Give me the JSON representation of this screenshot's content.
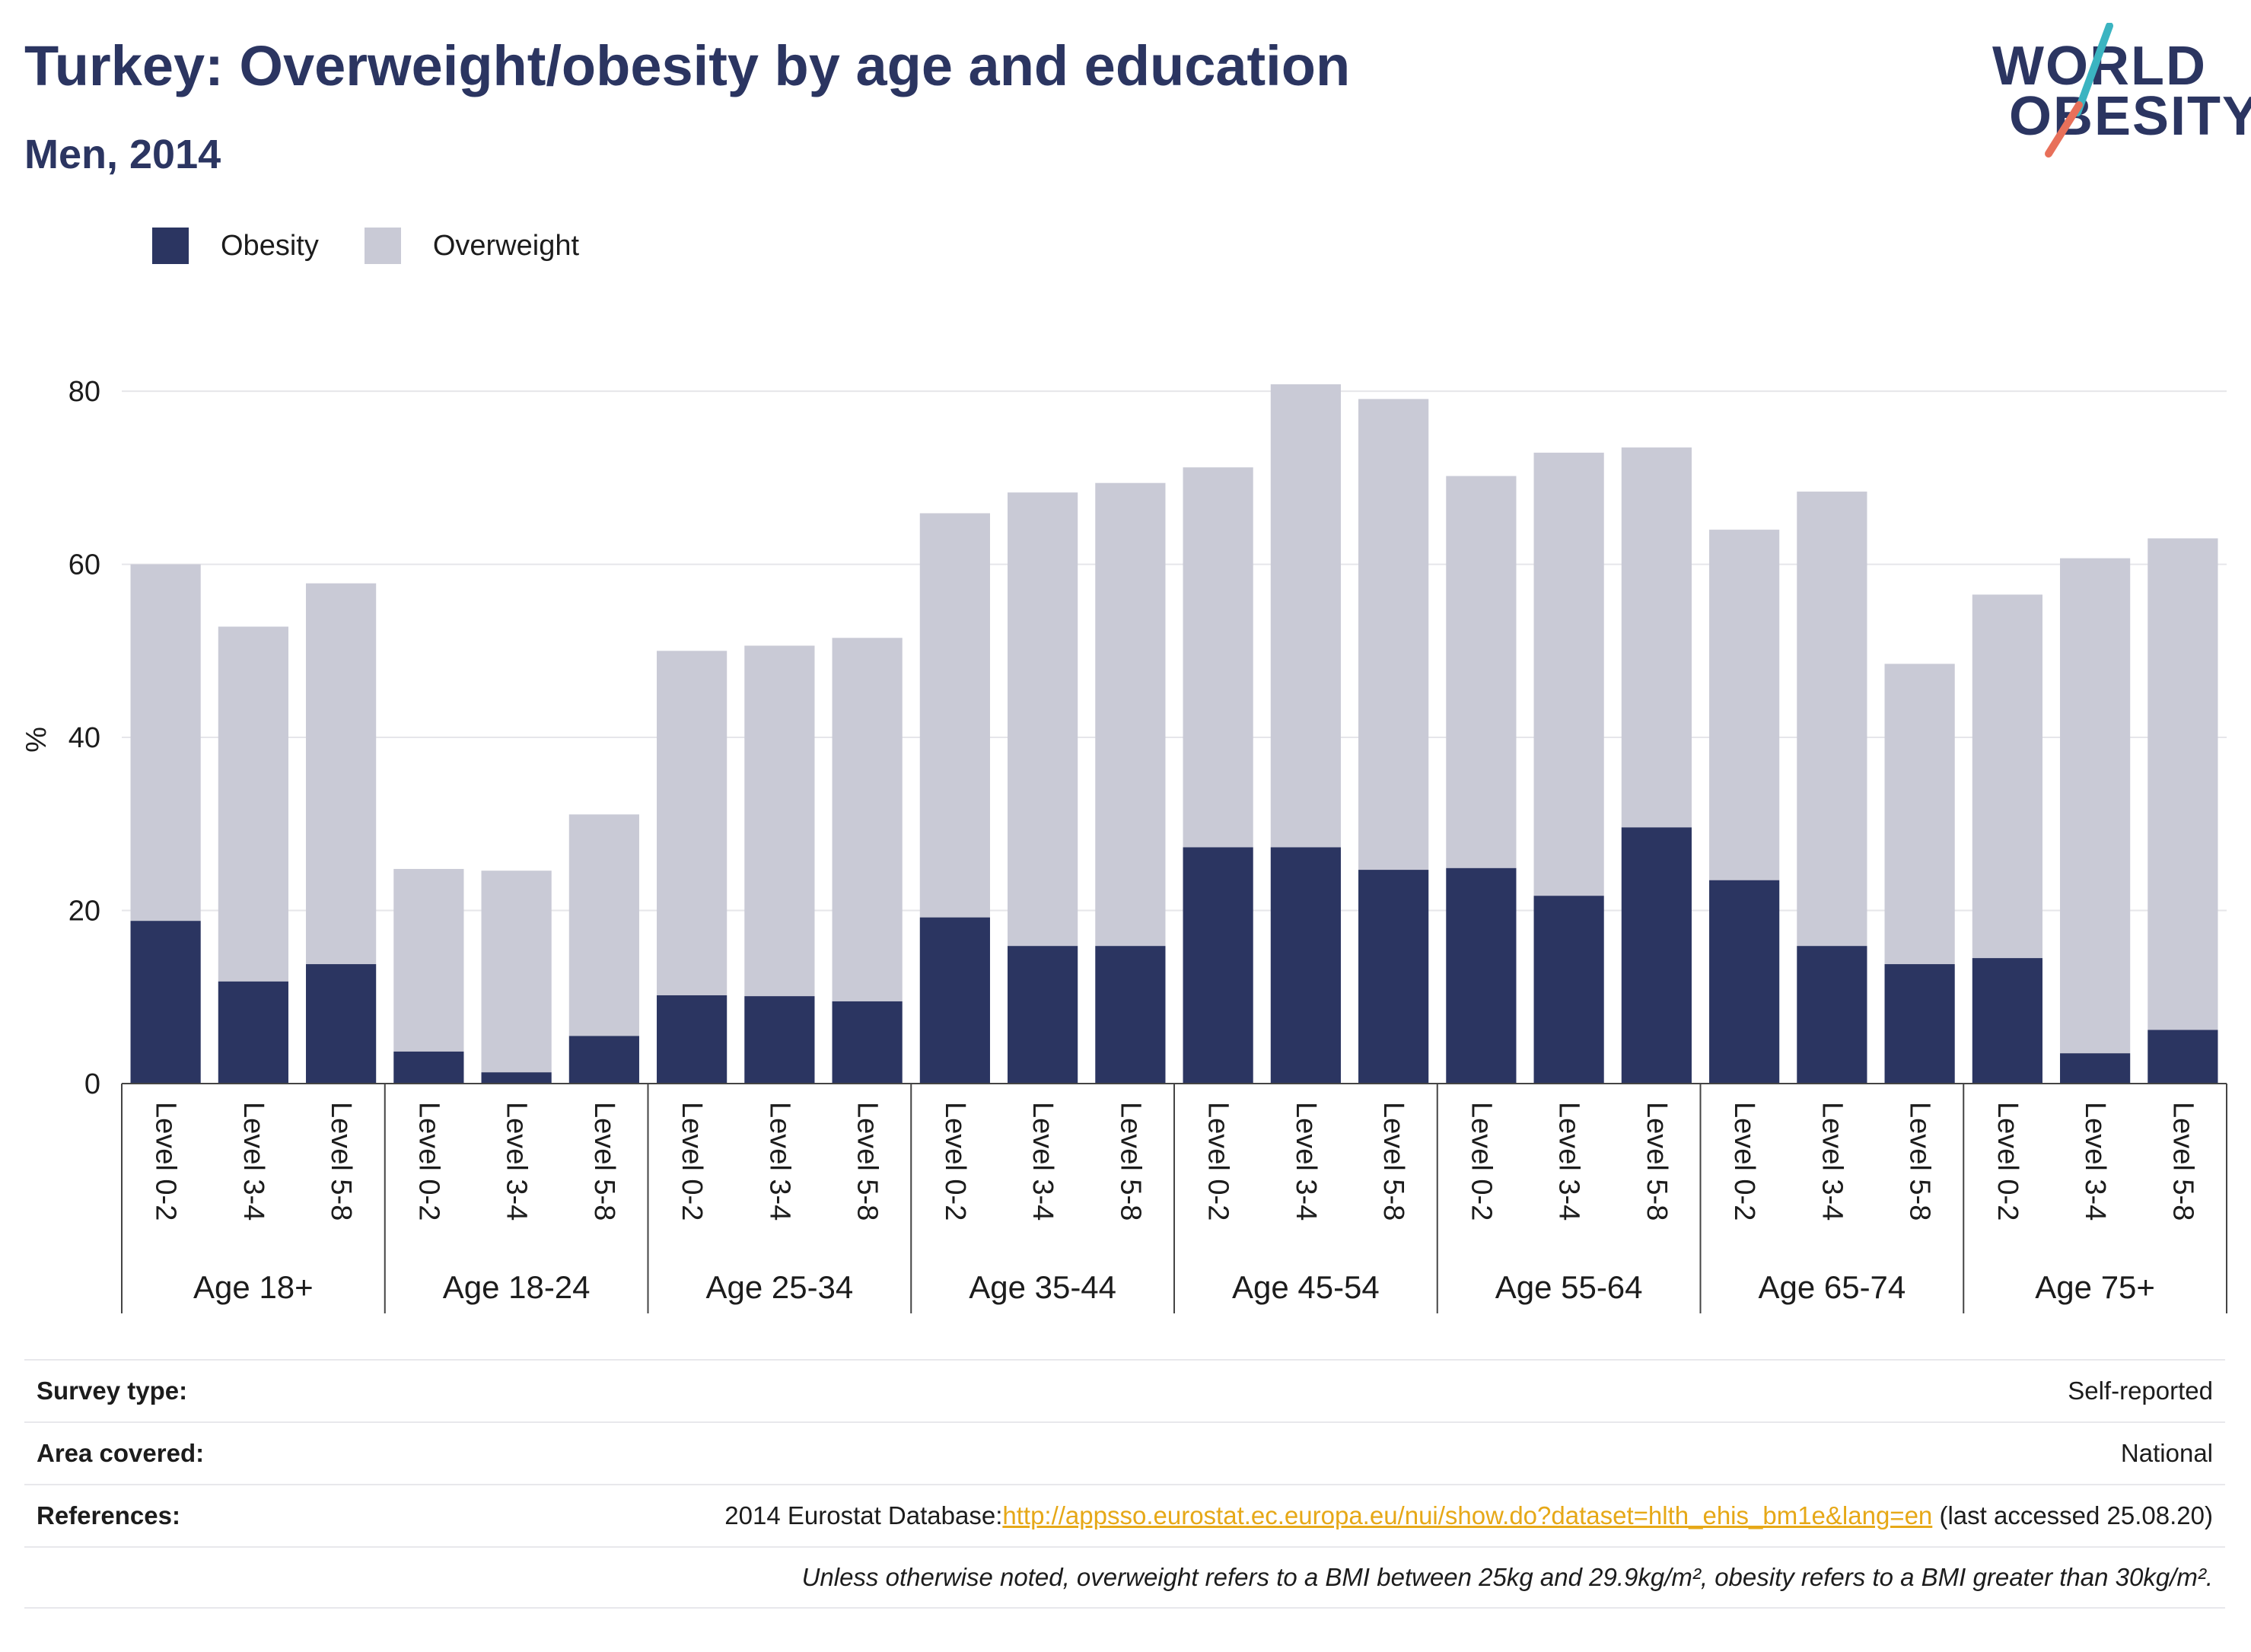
{
  "title": "Turkey: Overweight/obesity by age and education",
  "subtitle": "Men, 2014",
  "logo": {
    "line1": "WORLD",
    "line2": "OBESITY",
    "accent_colors": [
      "#3bb4c1",
      "#e8705a"
    ]
  },
  "legend": [
    {
      "label": "Obesity",
      "color": "#2b3561"
    },
    {
      "label": "Overweight",
      "color": "#c9cad6"
    }
  ],
  "chart_data": {
    "type": "bar",
    "stacked": true,
    "ylabel": "%",
    "ylim": [
      0,
      83
    ],
    "yticks": [
      0,
      20,
      40,
      60,
      80
    ],
    "grid": true,
    "legend_position": "top-left",
    "groups": [
      {
        "label": "Age 18+",
        "categories": [
          "Level 0-2",
          "Level 3-4",
          "Level 5-8"
        ],
        "obesity": [
          18.8,
          11.8,
          13.8
        ],
        "total": [
          60.0,
          52.8,
          57.8
        ]
      },
      {
        "label": "Age 18-24",
        "categories": [
          "Level 0-2",
          "Level 3-4",
          "Level 5-8"
        ],
        "obesity": [
          3.7,
          1.3,
          5.5
        ],
        "total": [
          24.8,
          24.6,
          31.1
        ]
      },
      {
        "label": "Age 25-34",
        "categories": [
          "Level 0-2",
          "Level 3-4",
          "Level 5-8"
        ],
        "obesity": [
          10.2,
          10.1,
          9.5
        ],
        "total": [
          50.0,
          50.6,
          51.5
        ]
      },
      {
        "label": "Age 35-44",
        "categories": [
          "Level 0-2",
          "Level 3-4",
          "Level 5-8"
        ],
        "obesity": [
          19.2,
          15.9,
          15.9
        ],
        "total": [
          65.9,
          68.3,
          69.4
        ]
      },
      {
        "label": "Age 45-54",
        "categories": [
          "Level 0-2",
          "Level 3-4",
          "Level 5-8"
        ],
        "obesity": [
          27.3,
          27.3,
          24.7
        ],
        "total": [
          71.2,
          80.8,
          79.1
        ]
      },
      {
        "label": "Age 55-64",
        "categories": [
          "Level 0-2",
          "Level 3-4",
          "Level 5-8"
        ],
        "obesity": [
          24.9,
          21.7,
          29.6
        ],
        "total": [
          70.2,
          72.9,
          73.5
        ]
      },
      {
        "label": "Age 65-74",
        "categories": [
          "Level 0-2",
          "Level 3-4",
          "Level 5-8"
        ],
        "obesity": [
          23.5,
          15.9,
          13.8
        ],
        "total": [
          64.0,
          68.4,
          48.5
        ]
      },
      {
        "label": "Age 75+",
        "categories": [
          "Level 0-2",
          "Level 3-4",
          "Level 5-8"
        ],
        "obesity": [
          14.5,
          3.5,
          6.2
        ],
        "total": [
          56.5,
          60.7,
          63.0
        ]
      }
    ]
  },
  "info": {
    "survey_type_label": "Survey type:",
    "survey_type_value": "Self-reported",
    "area_label": "Area covered:",
    "area_value": "National",
    "references_label": "References:",
    "references_prefix": "2014 Eurostat Database:",
    "references_link": "http://appsso.eurostat.ec.europa.eu/nui/show.do?dataset=hlth_ehis_bm1e&lang=en",
    "references_suffix": " (last accessed 25.08.20)",
    "note": "Unless otherwise noted, overweight refers to a BMI between 25kg and 29.9kg/m², obesity refers to a BMI greater than 30kg/m²."
  }
}
